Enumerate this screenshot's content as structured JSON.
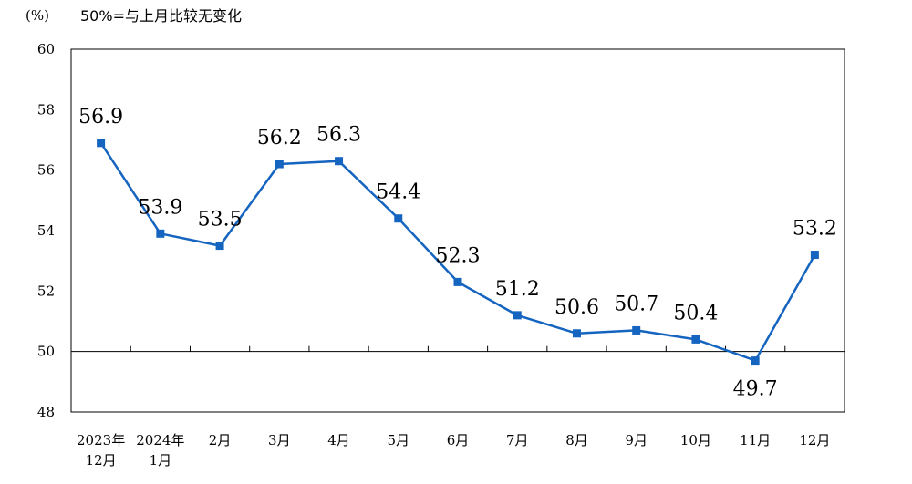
{
  "header": {
    "unit": "(%)",
    "note": "50%=与上月比较无变化"
  },
  "chart_data": {
    "type": "line",
    "categories": [
      [
        "2023年",
        "12月"
      ],
      [
        "2024年",
        "1月"
      ],
      [
        "2月"
      ],
      [
        "3月"
      ],
      [
        "4月"
      ],
      [
        "5月"
      ],
      [
        "6月"
      ],
      [
        "7月"
      ],
      [
        "8月"
      ],
      [
        "9月"
      ],
      [
        "10月"
      ],
      [
        "11月"
      ],
      [
        "12月"
      ]
    ],
    "series": [
      {
        "values": [
          56.9,
          53.9,
          53.5,
          56.2,
          56.3,
          54.4,
          52.3,
          51.2,
          50.6,
          50.7,
          50.4,
          49.7,
          53.2
        ]
      }
    ],
    "data_labels": [
      "56.9",
      "53.9",
      "53.5",
      "56.2",
      "56.3",
      "54.4",
      "52.3",
      "51.2",
      "50.6",
      "50.7",
      "50.4",
      "49.7",
      "53.2"
    ],
    "yticks": [
      "60",
      "58",
      "56",
      "54",
      "52",
      "50",
      "48"
    ],
    "ylim": [
      48,
      60
    ],
    "reference_line": 50,
    "grid": false,
    "colors": {
      "line": "#1565C0",
      "marker": "#1565C0",
      "axis": "#000000"
    }
  }
}
